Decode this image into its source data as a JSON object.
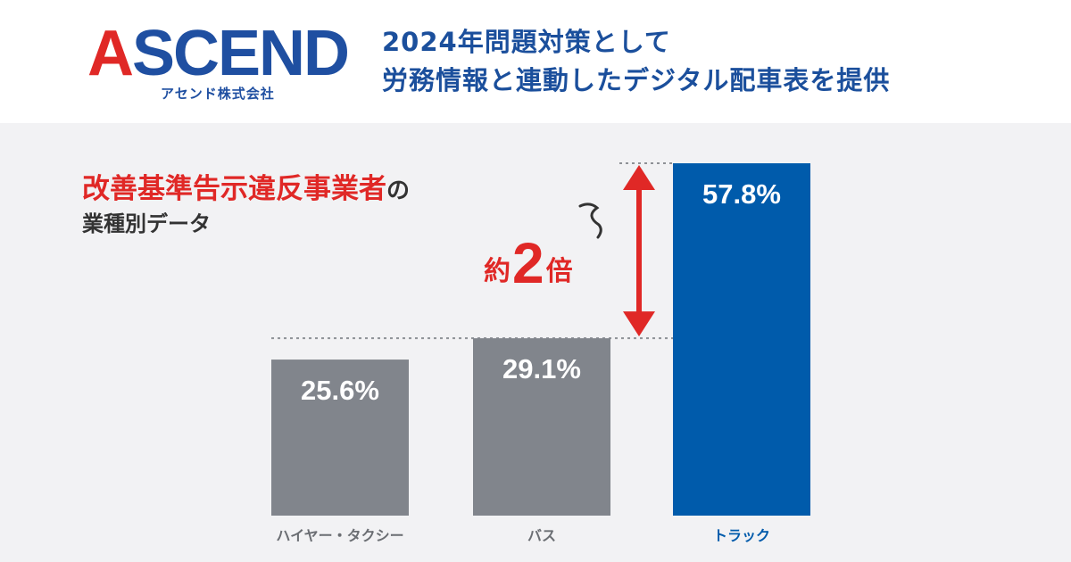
{
  "brand": {
    "name": "ASCEND",
    "subtitle": "アセンド株式会社",
    "colors": {
      "red": "#e02826",
      "blue": "#1f4fa1"
    }
  },
  "headline": {
    "line1": "2024年問題対策として",
    "line2": "労務情報と連動したデジタル配車表を提供"
  },
  "chart_data": {
    "type": "bar",
    "title_highlight": "改善基準告示違反事業者",
    "title_suffix": "の",
    "subtitle": "業種別データ",
    "categories": [
      "ハイヤー・タクシー",
      "バス",
      "トラック"
    ],
    "values": [
      25.6,
      29.1,
      57.8
    ],
    "value_labels": [
      "25.6%",
      "29.1%",
      "57.8%"
    ],
    "colors": [
      "#81858c",
      "#81858c",
      "#005bab"
    ],
    "label_colors": [
      "#6b6e73",
      "#6b6e73",
      "#005bab"
    ],
    "ylim": [
      0,
      60
    ],
    "annotation": {
      "prefix": "約",
      "number": "2",
      "suffix": "倍",
      "color": "#e02826"
    },
    "grid": false,
    "legend": "none"
  }
}
